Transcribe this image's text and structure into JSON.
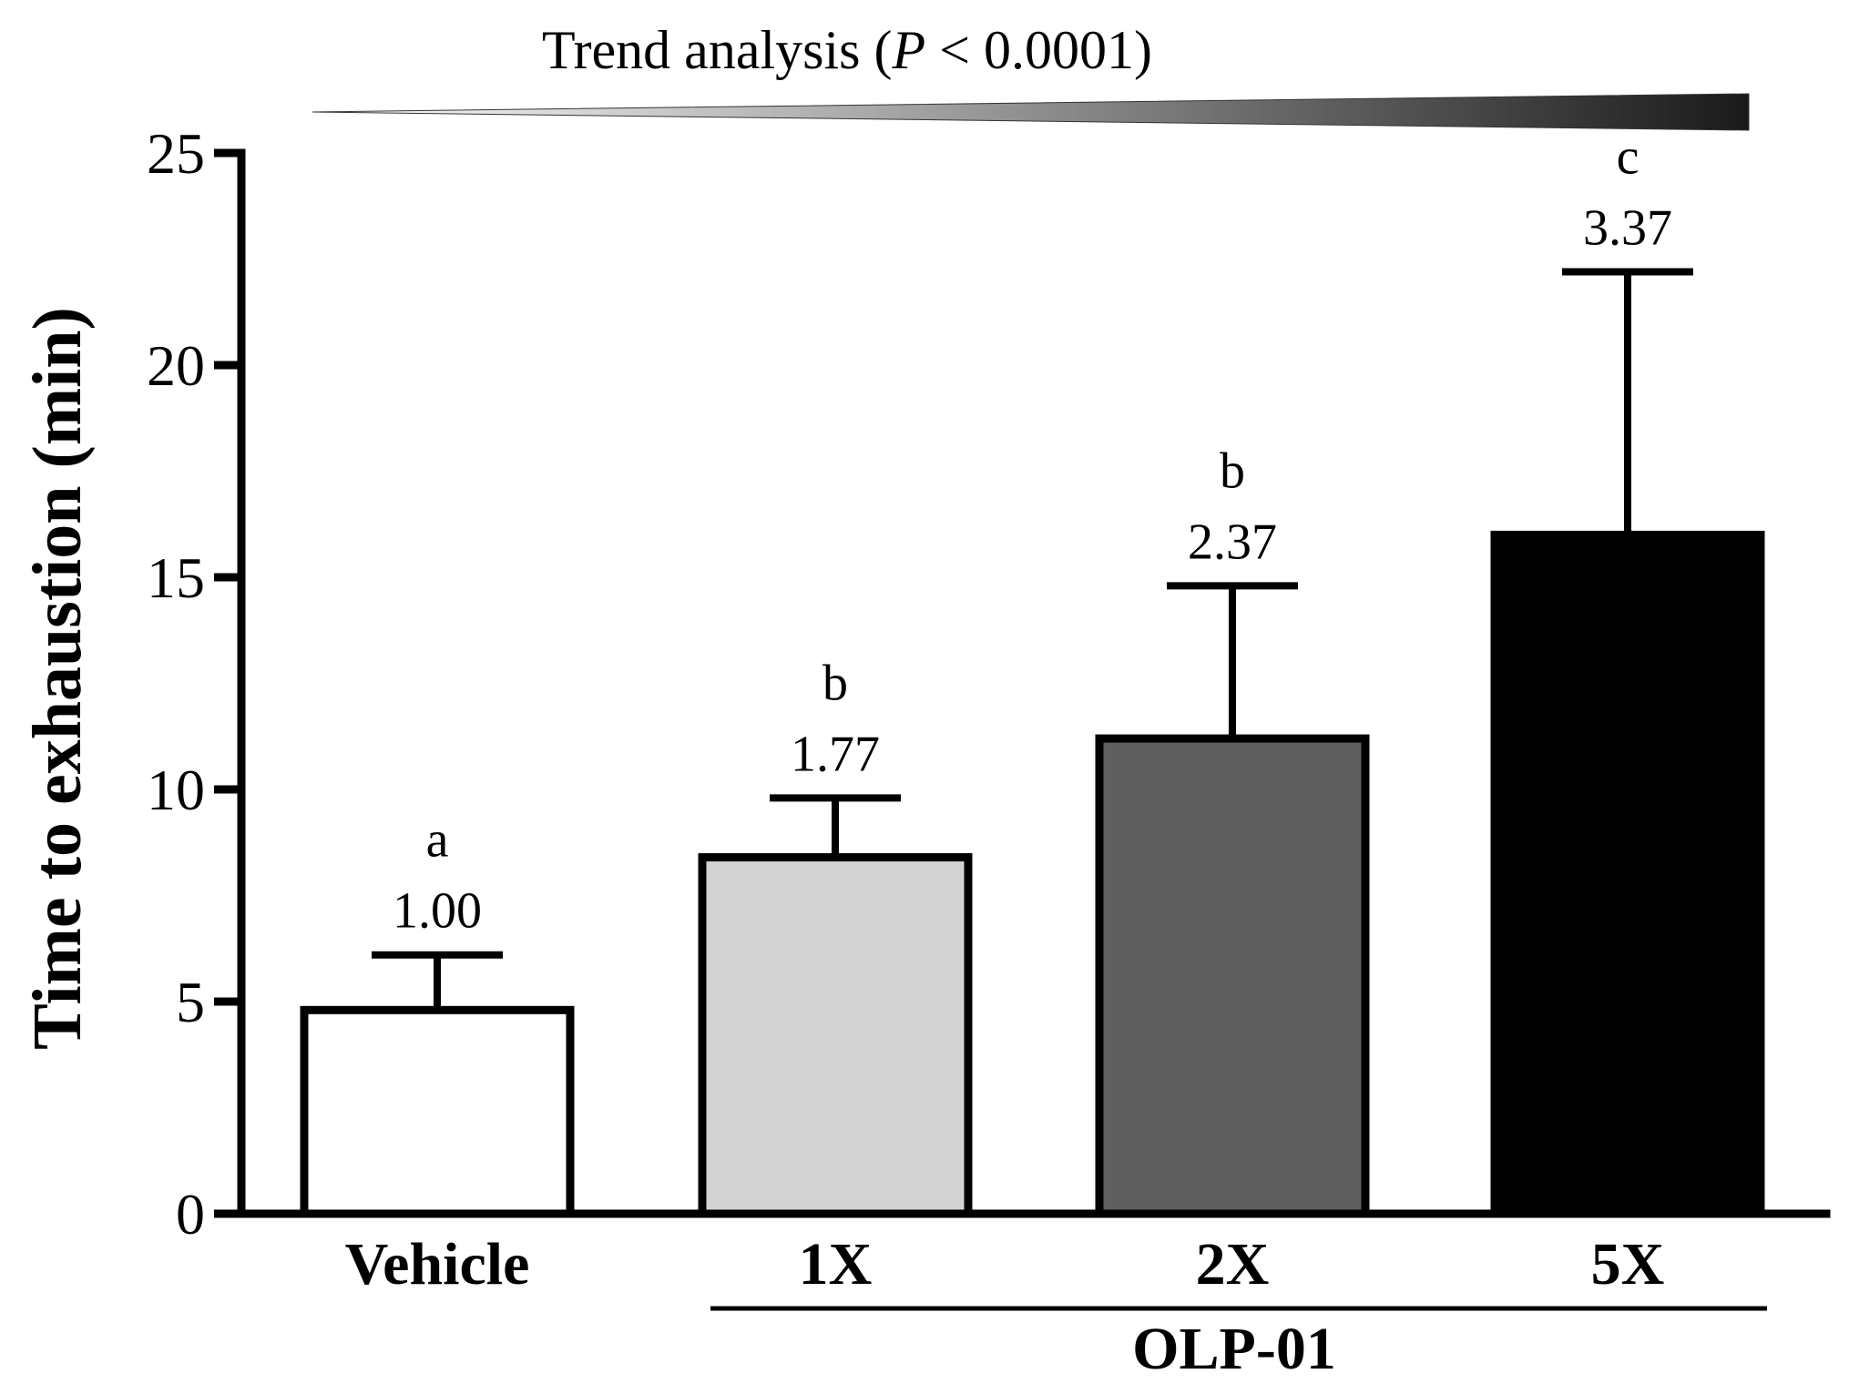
{
  "chart_data": {
    "type": "bar",
    "title": "Trend analysis (P < 0.0001)",
    "trend_prefix": "Trend analysis (",
    "trend_p": "P",
    "trend_suffix": " < 0.0001)",
    "ylabel": "Time to exhaustion (min)",
    "xlabel": "",
    "ylim": [
      0,
      25
    ],
    "yticks": [
      "0",
      "5",
      "10",
      "15",
      "20",
      "25"
    ],
    "group_label": "OLP-01",
    "categories": [
      "Vehicle",
      "1X",
      "2X",
      "5X"
    ],
    "values": [
      4.8,
      8.4,
      11.2,
      16.0
    ],
    "errors": [
      1.3,
      1.4,
      3.6,
      6.2
    ],
    "fold_changes": [
      "1.00",
      "1.77",
      "2.37",
      "3.37"
    ],
    "significance": [
      "a",
      "b",
      "b",
      "c"
    ],
    "colors": [
      "#ffffff",
      "#d3d3d3",
      "#5f5f5f",
      "#000000"
    ]
  }
}
